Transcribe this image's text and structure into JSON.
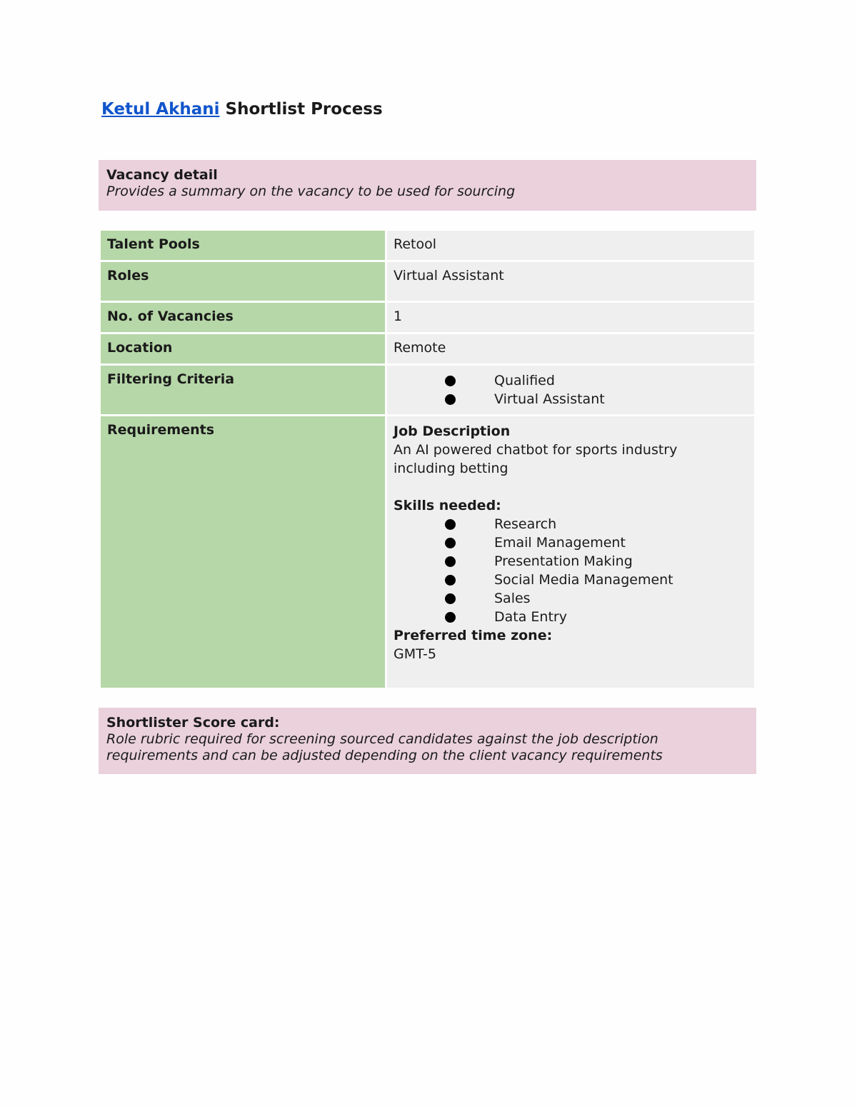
{
  "title": {
    "link": "Ketul Akhani",
    "rest": " Shortlist Process"
  },
  "vacancy": {
    "heading": "Vacancy detail",
    "subtitle": "Provides a summary on the vacancy to be used for sourcing"
  },
  "rows": [
    {
      "label": "Talent Pools",
      "value": "Retool"
    },
    {
      "label": "Roles",
      "value": "Virtual Assistant"
    },
    {
      "label": "No. of Vacancies",
      "value": "1"
    },
    {
      "label": "Location",
      "value": "Remote"
    },
    {
      "label": "Filtering Criteria",
      "items": [
        "Qualified",
        "Virtual Assistant"
      ]
    },
    {
      "label": "Requirements",
      "jd_heading": "Job Description",
      "jd_text": "An AI powered chatbot for sports industry including betting",
      "skills_heading": "Skills needed:",
      "skills": [
        "Research",
        "Email Management",
        "Presentation Making",
        "Social Media Management",
        "Sales",
        "Data Entry"
      ],
      "tz_heading": "Preferred time zone:",
      "tz": "GMT-5"
    }
  ],
  "scorecard": {
    "heading": "Shortlister Score card:",
    "subtitle": "Role rubric required for screening sourced candidates against the job description requirements and can be adjusted depending on the client vacancy requirements"
  }
}
